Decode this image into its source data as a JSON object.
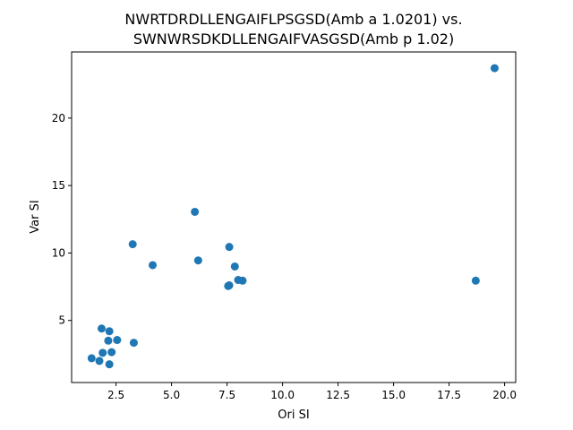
{
  "chart_data": {
    "type": "scatter",
    "title": [
      "NWRTDRDLLENGAIFLPSGSD(Amb a 1.0201) vs.",
      "SWNWRSDKDLLENGAIFVASGSD(Amb p 1.02)"
    ],
    "xlabel": "Ori SI",
    "ylabel": "Var SI",
    "xlim": [
      0.5,
      20.5
    ],
    "ylim": [
      0.4,
      24.9
    ],
    "xticks": [
      2.5,
      5.0,
      7.5,
      10.0,
      12.5,
      15.0,
      17.5,
      20.0
    ],
    "xtick_labels": [
      "2.5",
      "5.0",
      "7.5",
      "10.0",
      "12.5",
      "15.0",
      "17.5",
      "20.0"
    ],
    "yticks": [
      5,
      10,
      15,
      20
    ],
    "ytick_labels": [
      "5",
      "10",
      "15",
      "20"
    ],
    "grid": false,
    "marker_color": "#1f77b4",
    "points": [
      {
        "x": 19.55,
        "y": 23.7
      },
      {
        "x": 18.7,
        "y": 7.95
      },
      {
        "x": 6.05,
        "y": 13.05
      },
      {
        "x": 3.25,
        "y": 10.65
      },
      {
        "x": 7.6,
        "y": 10.45
      },
      {
        "x": 6.2,
        "y": 9.45
      },
      {
        "x": 4.15,
        "y": 9.1
      },
      {
        "x": 7.85,
        "y": 9.0
      },
      {
        "x": 8.0,
        "y": 8.0
      },
      {
        "x": 8.2,
        "y": 7.95
      },
      {
        "x": 7.55,
        "y": 7.55
      },
      {
        "x": 7.6,
        "y": 7.6
      },
      {
        "x": 1.85,
        "y": 4.4
      },
      {
        "x": 2.2,
        "y": 4.2
      },
      {
        "x": 2.15,
        "y": 3.5
      },
      {
        "x": 2.55,
        "y": 3.55
      },
      {
        "x": 3.3,
        "y": 3.35
      },
      {
        "x": 1.9,
        "y": 2.6
      },
      {
        "x": 2.3,
        "y": 2.65
      },
      {
        "x": 1.4,
        "y": 2.2
      },
      {
        "x": 1.75,
        "y": 2.0
      },
      {
        "x": 2.2,
        "y": 1.75
      }
    ]
  }
}
